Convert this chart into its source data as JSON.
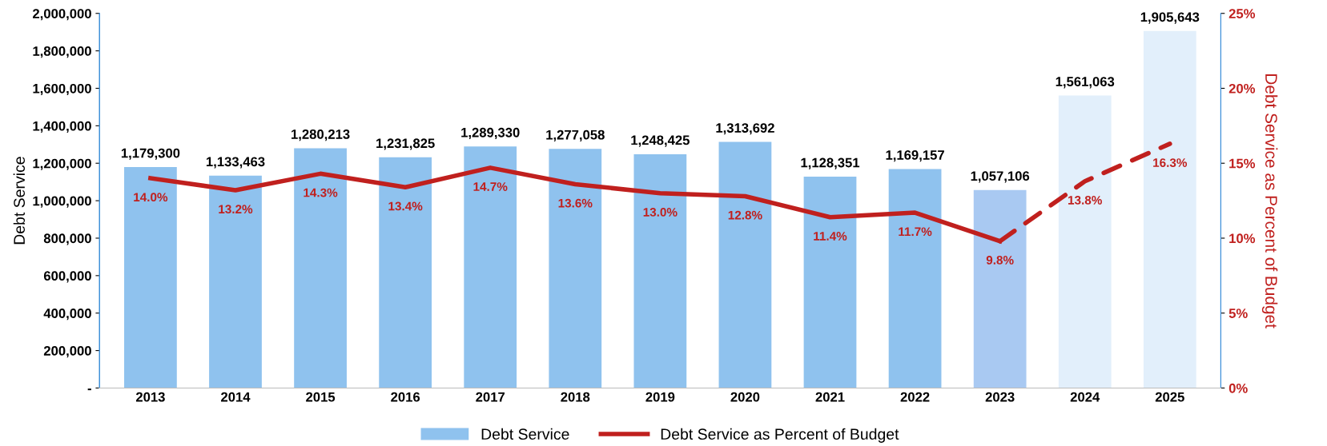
{
  "chart_data": {
    "type": "bar",
    "categories": [
      "2013",
      "2014",
      "2015",
      "2016",
      "2017",
      "2018",
      "2019",
      "2020",
      "2021",
      "2022",
      "2023",
      "2024",
      "2025"
    ],
    "series": [
      {
        "name": "Debt Service",
        "color": "#8fc2ee",
        "colors": [
          "#8fc2ee",
          "#8fc2ee",
          "#8fc2ee",
          "#8fc2ee",
          "#8fc2ee",
          "#8fc2ee",
          "#8fc2ee",
          "#8fc2ee",
          "#8fc2ee",
          "#8fc2ee",
          "#a9c9f2",
          "#e2effb",
          "#e2effb"
        ],
        "values": [
          1179300,
          1133463,
          1280213,
          1231825,
          1289330,
          1277058,
          1248425,
          1313692,
          1128351,
          1169157,
          1057106,
          1561063,
          1905643
        ],
        "value_labels": [
          "1,179,300",
          "1,133,463",
          "1,280,213",
          "1,231,825",
          "1,289,330",
          "1,277,058",
          "1,248,425",
          "1,313,692",
          "1,128,351",
          "1,169,157",
          "1,057,106",
          "1,561,063",
          "1,905,643"
        ]
      },
      {
        "name": "Debt Service as Percent of Budget",
        "type": "line",
        "axis": "y2",
        "color": "#c0201e",
        "line_style": "solid",
        "values": [
          14.0,
          13.2,
          14.3,
          13.4,
          14.7,
          13.6,
          13.0,
          12.8,
          11.4,
          11.7,
          9.8,
          null,
          null
        ],
        "value_labels": [
          "14.0%",
          "13.2%",
          "14.3%",
          "13.4%",
          "14.7%",
          "13.6%",
          "13.0%",
          "12.8%",
          "11.4%",
          "11.7%",
          "9.8%",
          null,
          null
        ]
      },
      {
        "type": "line",
        "axis": "y2",
        "color": "#c0201e",
        "line_style": "dashed",
        "values": [
          null,
          null,
          null,
          null,
          null,
          null,
          null,
          null,
          null,
          null,
          9.8,
          13.8,
          16.3
        ],
        "value_labels": [
          null,
          null,
          null,
          null,
          null,
          null,
          null,
          null,
          null,
          null,
          null,
          "13.8%",
          "16.3%"
        ]
      }
    ],
    "ylabel": "Debt Service",
    "y2label": "Debt Service as Percent of Budget",
    "ylim": [
      0,
      2000000
    ],
    "yticks": [
      {
        "value": 0,
        "label": "-"
      },
      {
        "value": 200000,
        "label": "200,000"
      },
      {
        "value": 400000,
        "label": "400,000"
      },
      {
        "value": 600000,
        "label": "600,000"
      },
      {
        "value": 800000,
        "label": "800,000"
      },
      {
        "value": 1000000,
        "label": "1,000,000"
      },
      {
        "value": 1200000,
        "label": "1,200,000"
      },
      {
        "value": 1400000,
        "label": "1,400,000"
      },
      {
        "value": 1600000,
        "label": "1,600,000"
      },
      {
        "value": 1800000,
        "label": "1,800,000"
      },
      {
        "value": 2000000,
        "label": "2,000,000"
      }
    ],
    "y2lim": [
      0,
      25
    ],
    "y2ticks": [
      {
        "value": 0,
        "label": "0%"
      },
      {
        "value": 5,
        "label": "5%"
      },
      {
        "value": 10,
        "label": "10%"
      },
      {
        "value": 15,
        "label": "15%"
      },
      {
        "value": 20,
        "label": "20%"
      },
      {
        "value": 25,
        "label": "25%"
      }
    ],
    "grid": false,
    "legend": "bottom"
  }
}
